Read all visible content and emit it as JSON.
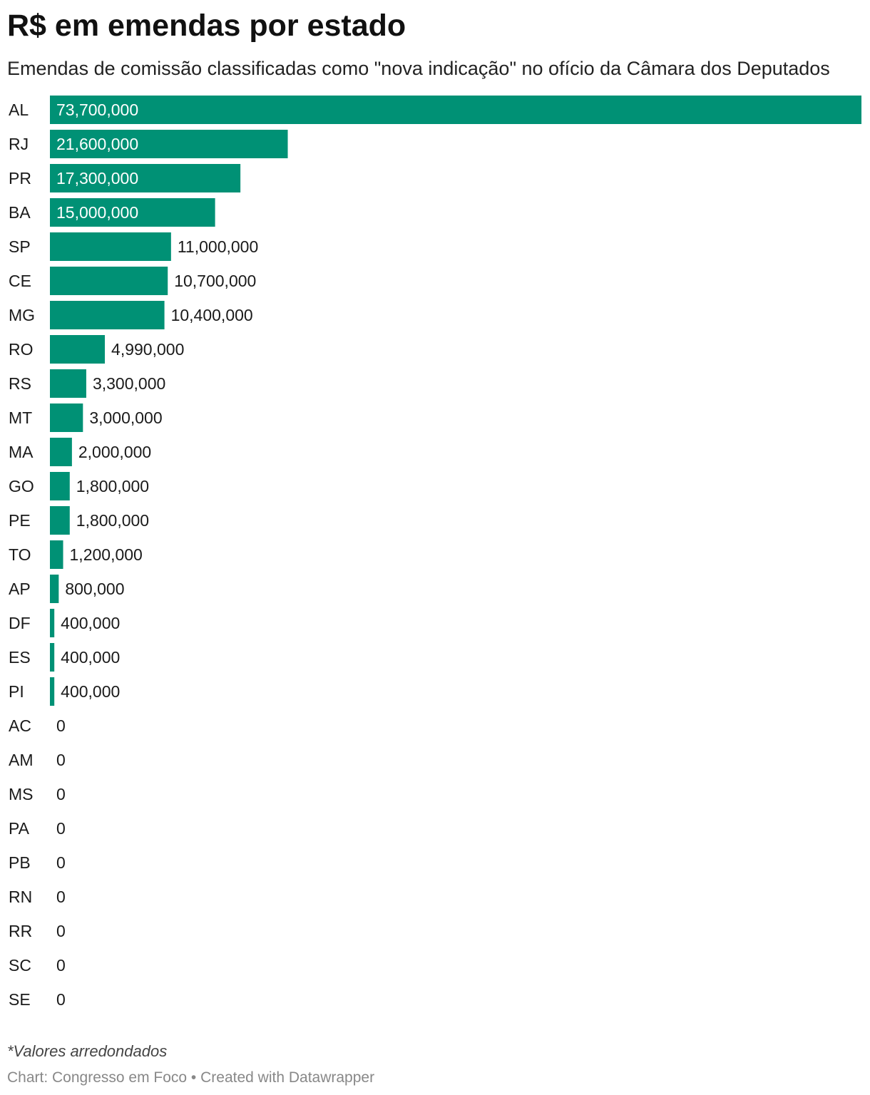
{
  "chart_data": {
    "type": "bar",
    "orientation": "horizontal",
    "title": "R$ em emendas por estado",
    "subtitle": "Emendas de comissão classificadas como \"nova indicação\" no ofício da Câmara dos Deputados",
    "categories": [
      "AL",
      "RJ",
      "PR",
      "BA",
      "SP",
      "CE",
      "MG",
      "RO",
      "RS",
      "MT",
      "MA",
      "GO",
      "PE",
      "TO",
      "AP",
      "DF",
      "ES",
      "PI",
      "AC",
      "AM",
      "MS",
      "PA",
      "PB",
      "RN",
      "RR",
      "SC",
      "SE"
    ],
    "values": [
      73700000,
      21600000,
      17300000,
      15000000,
      11000000,
      10700000,
      10400000,
      4990000,
      3300000,
      3000000,
      2000000,
      1800000,
      1800000,
      1200000,
      800000,
      400000,
      400000,
      400000,
      0,
      0,
      0,
      0,
      0,
      0,
      0,
      0,
      0
    ],
    "value_labels": [
      "73,700,000",
      "21,600,000",
      "17,300,000",
      "15,000,000",
      "11,000,000",
      "10,700,000",
      "10,400,000",
      "4,990,000",
      "3,300,000",
      "3,000,000",
      "2,000,000",
      "1,800,000",
      "1,800,000",
      "1,200,000",
      "800,000",
      "400,000",
      "400,000",
      "400,000",
      "0",
      "0",
      "0",
      "0",
      "0",
      "0",
      "0",
      "0",
      "0"
    ],
    "xlim": [
      0,
      73700000
    ],
    "grid": false,
    "legend": "none",
    "bar_color": "#009175",
    "inside_label_color": "#ffffff",
    "outside_label_color": "#1a1a1a"
  },
  "notes": "*Valores arredondados",
  "credit": "Chart: Congresso em Foco • Created with Datawrapper"
}
